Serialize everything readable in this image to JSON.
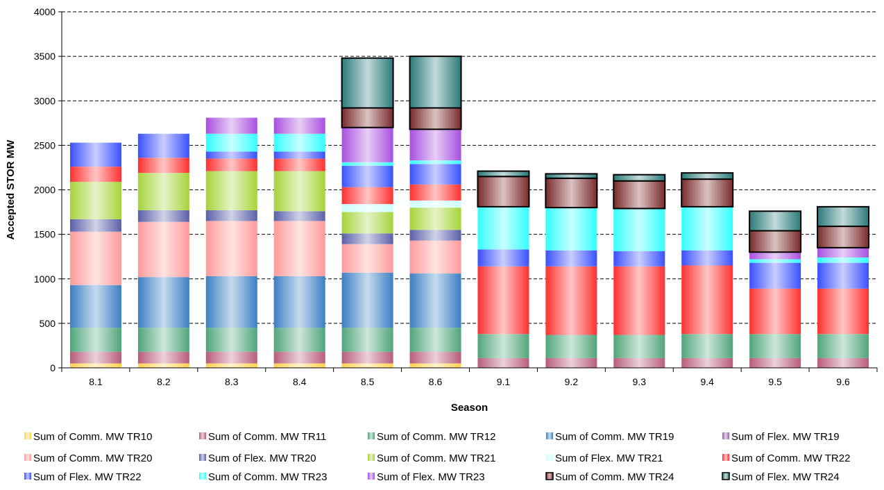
{
  "chart_data": {
    "type": "bar",
    "stacked": true,
    "xlabel": "Season",
    "ylabel": "Accepted STOR MW",
    "ylim": [
      0,
      4000
    ],
    "yticks": [
      0,
      500,
      1000,
      1500,
      2000,
      2500,
      3000,
      3500,
      4000
    ],
    "grid": "horizontal dashed",
    "legend_position": "bottom",
    "categories": [
      "8.1",
      "8.2",
      "8.3",
      "8.4",
      "8.5",
      "8.6",
      "9.1",
      "9.2",
      "9.3",
      "9.4",
      "9.5",
      "9.6"
    ],
    "series": [
      {
        "name": "Sum of Comm. MW TR10",
        "color": "#ffd24d",
        "values": [
          50,
          50,
          50,
          50,
          50,
          50,
          0,
          0,
          0,
          0,
          0,
          0
        ]
      },
      {
        "name": "Sum of Comm. MW TR11",
        "color": "#b85c7a",
        "values": [
          130,
          130,
          130,
          130,
          130,
          130,
          110,
          110,
          110,
          110,
          110,
          110
        ]
      },
      {
        "name": "Sum of Comm. MW TR12",
        "color": "#4fa57a",
        "values": [
          270,
          270,
          270,
          270,
          270,
          270,
          270,
          260,
          260,
          270,
          270,
          270
        ]
      },
      {
        "name": "Sum of Comm. MW TR19",
        "color": "#3a7fc4",
        "values": [
          480,
          570,
          580,
          580,
          620,
          610,
          0,
          0,
          0,
          0,
          0,
          0
        ]
      },
      {
        "name": "Sum of Flex. MW TR19",
        "color": "#9a5fb0",
        "values": [
          0,
          0,
          0,
          0,
          0,
          0,
          0,
          0,
          0,
          0,
          0,
          0
        ]
      },
      {
        "name": "Sum of Comm. MW TR20",
        "color": "#ff9a9a",
        "values": [
          600,
          620,
          620,
          620,
          320,
          370,
          0,
          0,
          0,
          0,
          0,
          0
        ]
      },
      {
        "name": "Sum of Flex. MW TR20",
        "color": "#5a5fa8",
        "values": [
          140,
          130,
          120,
          110,
          120,
          120,
          0,
          0,
          0,
          0,
          0,
          0
        ]
      },
      {
        "name": "Sum of Comm. MW TR21",
        "color": "#a6d43a",
        "values": [
          420,
          420,
          440,
          450,
          240,
          250,
          0,
          0,
          0,
          0,
          0,
          0
        ]
      },
      {
        "name": "Sum of Flex. MW TR21",
        "color": "#ccffff",
        "values": [
          0,
          0,
          0,
          0,
          90,
          80,
          0,
          0,
          0,
          0,
          0,
          0
        ]
      },
      {
        "name": "Sum of Comm. MW TR22",
        "color": "#ff3030",
        "values": [
          170,
          170,
          140,
          140,
          190,
          180,
          760,
          770,
          770,
          770,
          510,
          510
        ]
      },
      {
        "name": "Sum of Flex. MW TR22",
        "color": "#3a50ff",
        "values": [
          270,
          270,
          80,
          80,
          240,
          230,
          190,
          180,
          170,
          170,
          290,
          290
        ]
      },
      {
        "name": "Sum of Comm. MW TR23",
        "color": "#33ffff",
        "values": [
          0,
          0,
          200,
          200,
          40,
          40,
          480,
          480,
          480,
          490,
          40,
          60
        ]
      },
      {
        "name": "Sum of Flex. MW TR23",
        "color": "#a84fe0",
        "values": [
          0,
          0,
          180,
          180,
          390,
          350,
          0,
          0,
          0,
          0,
          80,
          110
        ]
      },
      {
        "name": "Sum of Comm. MW TR24",
        "color": "#7a2a2a",
        "values": [
          0,
          0,
          0,
          0,
          220,
          240,
          340,
          330,
          310,
          310,
          240,
          240
        ]
      },
      {
        "name": "Sum of Flex. MW TR24",
        "color": "#2a7a7a",
        "values": [
          0,
          0,
          0,
          0,
          560,
          580,
          60,
          50,
          70,
          70,
          220,
          220
        ]
      }
    ]
  }
}
